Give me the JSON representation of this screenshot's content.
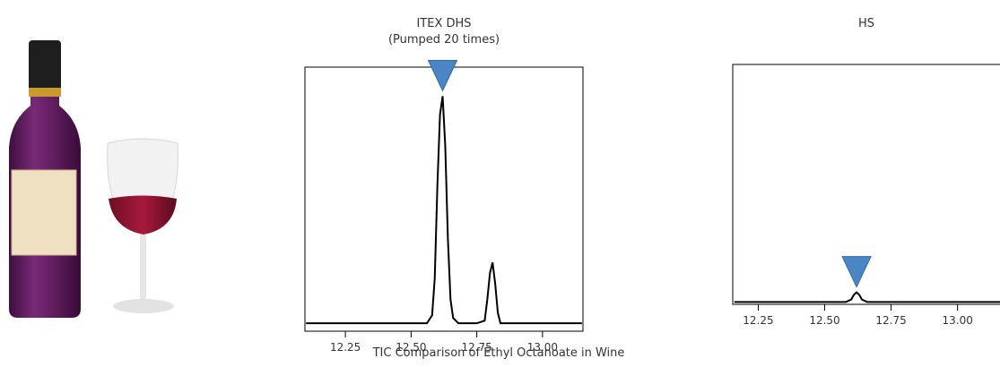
{
  "chart_data": [
    {
      "type": "line",
      "title": "ITEX DHS",
      "subtitle": "(Pumped 20 times)",
      "x": [
        12.1,
        12.2,
        12.3,
        12.4,
        12.5,
        12.56,
        12.58,
        12.59,
        12.6,
        12.61,
        12.62,
        12.63,
        12.64,
        12.65,
        12.66,
        12.68,
        12.75,
        12.78,
        12.79,
        12.8,
        12.81,
        12.82,
        12.83,
        12.84,
        12.95,
        13.05,
        13.15
      ],
      "values": [
        3,
        3,
        3,
        3,
        3,
        3,
        6,
        20,
        55,
        82,
        89,
        70,
        35,
        12,
        5,
        3,
        3,
        4,
        12,
        22,
        26,
        18,
        7,
        3,
        3,
        3,
        3
      ],
      "color": "#000000",
      "xlim": [
        12.096,
        13.154
      ],
      "ylim": [
        0,
        100
      ],
      "xticks": [
        12.25,
        {
          "value": 12.5,
          "label": "12.50"
        },
        12.75,
        {
          "value": 13,
          "label": "13.00"
        }
      ]
    },
    {
      "type": "line",
      "title": "HS",
      "x": [
        12.16,
        12.3,
        12.45,
        12.58,
        12.6,
        12.61,
        12.62,
        12.63,
        12.64,
        12.66,
        12.8,
        13.0,
        13.18
      ],
      "values": [
        1,
        1,
        1,
        1,
        2,
        4,
        5,
        4,
        2,
        1,
        1,
        1,
        1
      ],
      "color": "#000000",
      "xlim": [
        12.154,
        13.18
      ],
      "ylim": [
        0,
        100
      ],
      "xticks": [
        12.25,
        {
          "value": 12.5,
          "label": "12.50"
        },
        12.75,
        {
          "value": 13,
          "label": "13.00"
        }
      ]
    }
  ],
  "caption": "TIC Comparison of Ethyl Octanoate in Wine"
}
